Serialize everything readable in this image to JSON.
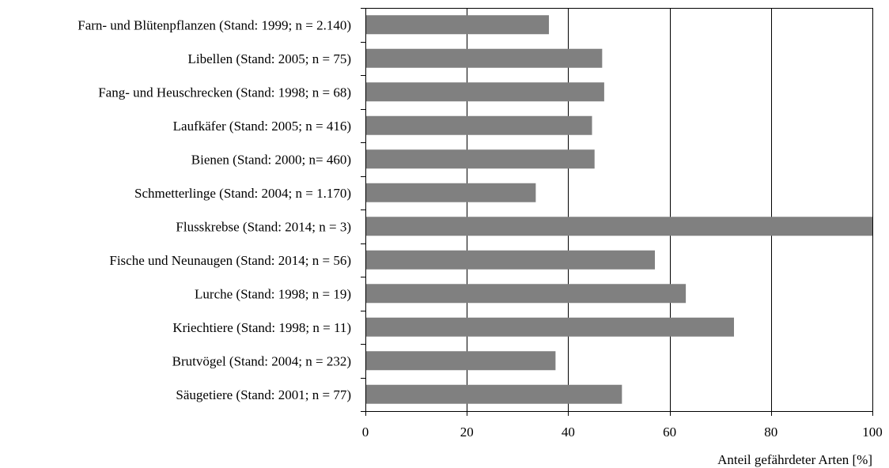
{
  "chart_data": {
    "type": "bar",
    "orientation": "horizontal",
    "categories": [
      "Farn- und Blütenpflanzen (Stand: 1999; n = 2.140)",
      "Libellen (Stand: 2005; n = 75)",
      "Fang- und Heuschrecken (Stand: 1998; n = 68)",
      "Laufkäfer (Stand: 2005; n = 416)",
      "Bienen (Stand: 2000; n= 460)",
      "Schmetterlinge (Stand: 2004; n = 1.170)",
      "Flusskrebse (Stand: 2014; n = 3)",
      "Fische und Neunaugen (Stand: 2014; n = 56)",
      "Lurche (Stand: 1998; n = 19)",
      "Kriechtiere (Stand: 1998; n = 11)",
      "Brutvögel (Stand: 2004; n = 232)",
      "Säugetiere (Stand: 2001; n = 77)"
    ],
    "values": [
      36.2,
      46.7,
      47.1,
      44.7,
      45.2,
      33.6,
      100,
      57.1,
      63.2,
      72.7,
      37.5,
      50.6
    ],
    "xlim": [
      0,
      100
    ],
    "xticks": [
      0,
      20,
      40,
      60,
      80,
      100
    ],
    "xticklabels": [
      "0",
      "20",
      "40",
      "60",
      "80",
      "100"
    ],
    "xlabel": "Anteil gefährdeter Arten [%]",
    "ylabel": "",
    "title": "",
    "grid": "vertical",
    "bar_color": "#808080"
  }
}
